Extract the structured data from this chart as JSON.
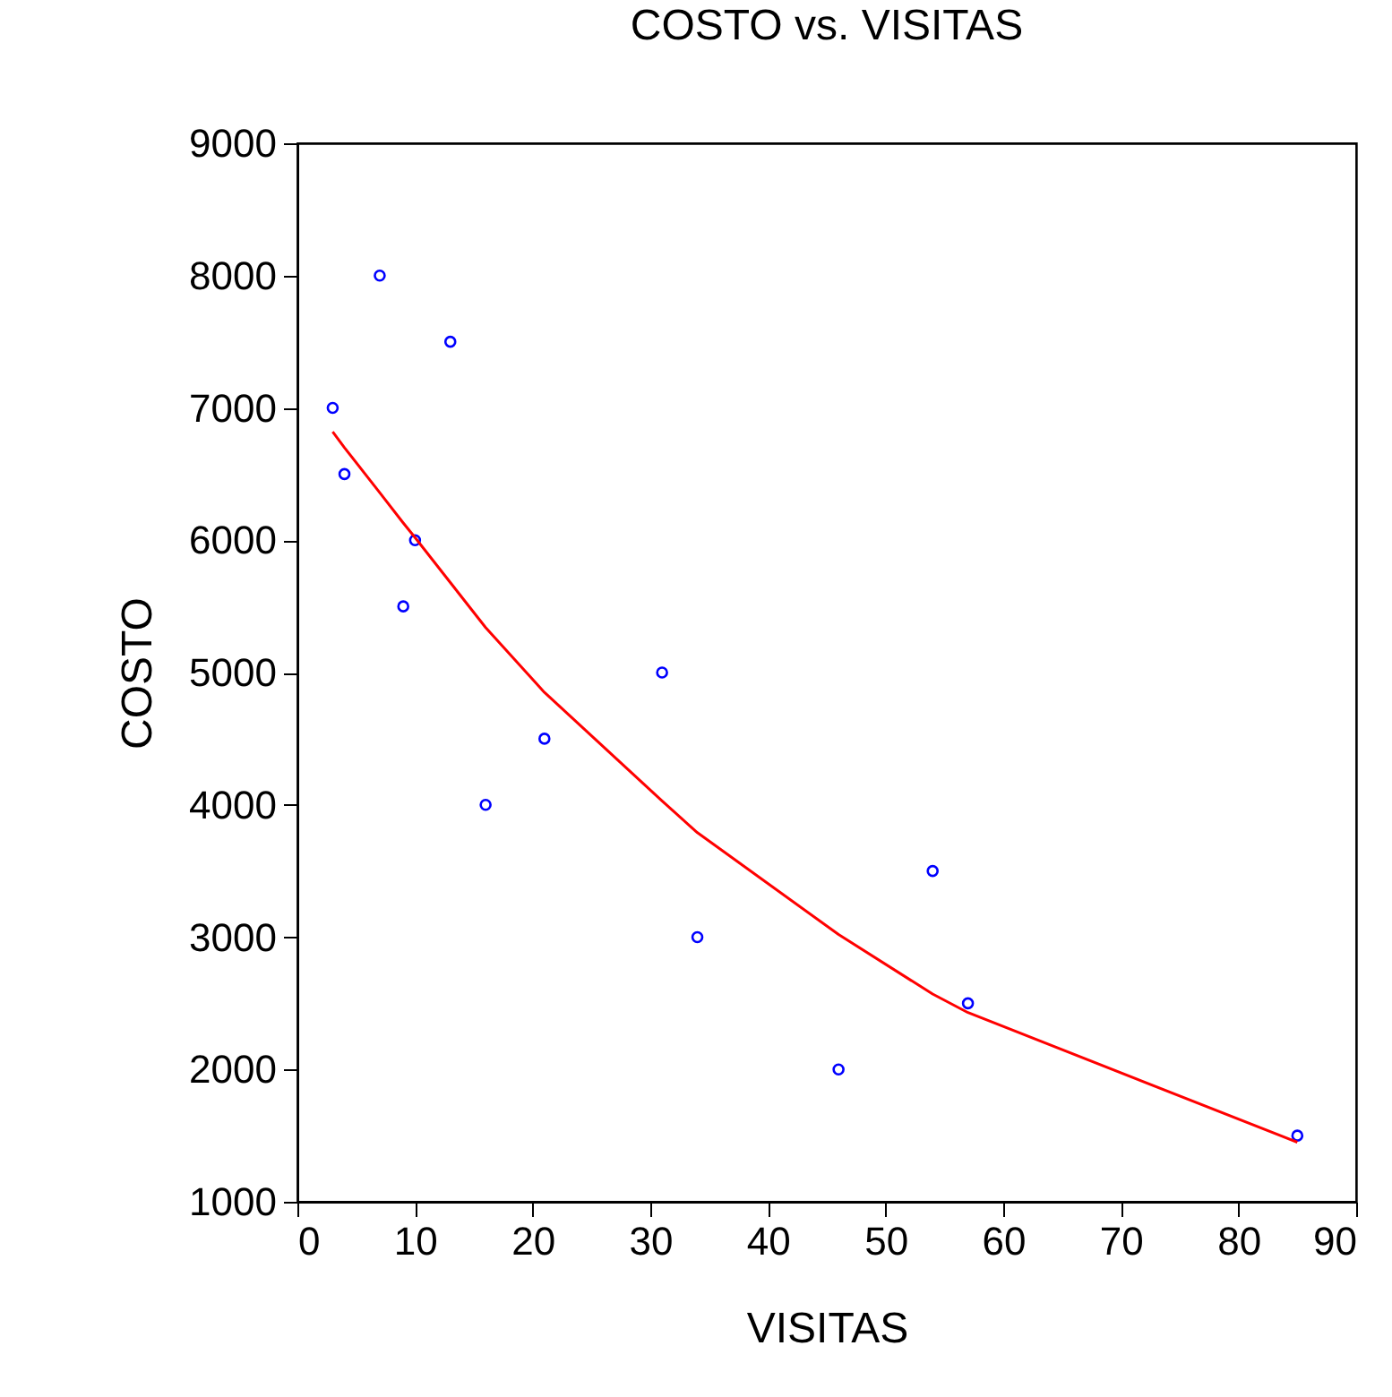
{
  "chart_data": {
    "type": "scatter",
    "title": "COSTO vs. VISITAS",
    "xlabel": "VISITAS",
    "ylabel": "COSTO",
    "xlim": [
      0,
      90
    ],
    "xticks": [
      0,
      10,
      20,
      30,
      40,
      50,
      60,
      70,
      80,
      90
    ],
    "ylim": [
      1000,
      9000
    ],
    "yticks": [
      1000,
      2000,
      3000,
      4000,
      5000,
      6000,
      7000,
      8000,
      9000
    ],
    "grid": false,
    "legend": false,
    "series": [
      {
        "type": "scatter",
        "color": "#0000ff",
        "marker": "circle",
        "x": [
          3,
          4,
          7,
          13,
          10,
          9,
          16,
          21,
          31,
          34,
          46,
          54,
          57,
          85
        ],
        "values": [
          7000,
          6500,
          8000,
          7500,
          6000,
          5500,
          4000,
          4500,
          5000,
          3000,
          2000,
          3500,
          2500,
          1500
        ]
      },
      {
        "type": "line",
        "color": "#ff0000",
        "marker": "none",
        "line_style": "solid",
        "x": [
          3,
          4,
          7,
          9,
          10,
          13,
          16,
          21,
          31,
          34,
          46,
          54,
          57,
          85
        ],
        "values": [
          6820,
          6700,
          6360,
          6130,
          6020,
          5680,
          5340,
          4850,
          4030,
          3790,
          3020,
          2570,
          2430,
          1450
        ]
      }
    ]
  }
}
